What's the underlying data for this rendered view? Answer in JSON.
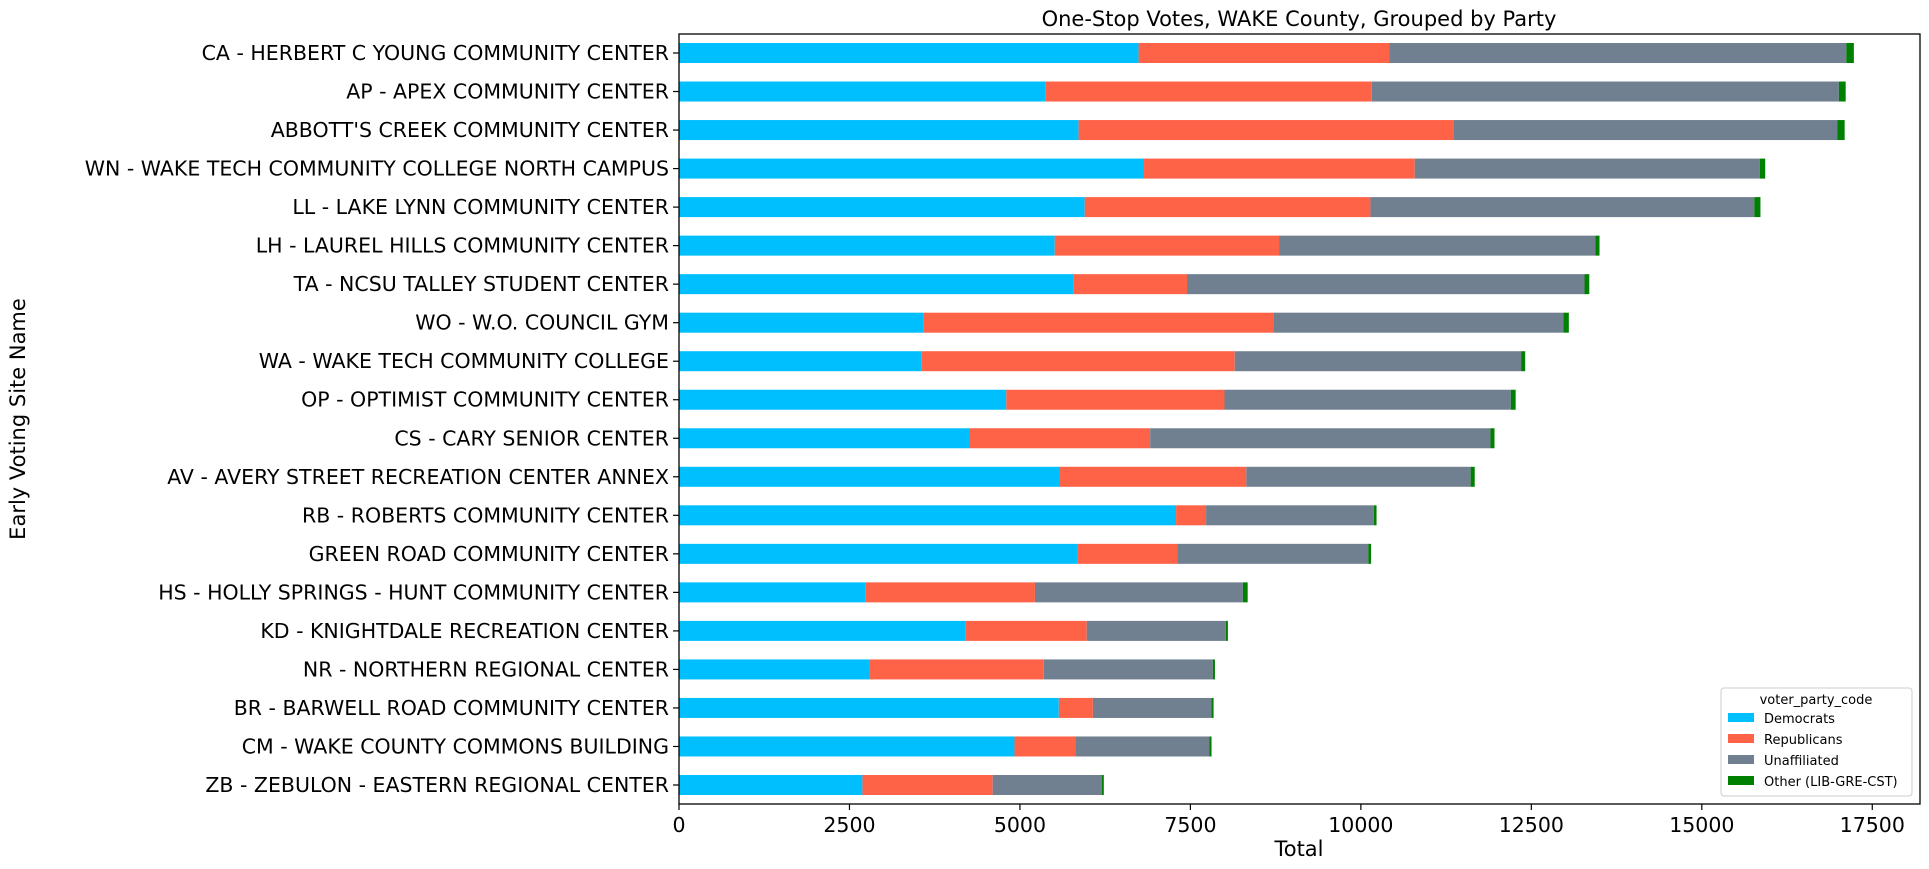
{
  "chart_data": {
    "type": "bar",
    "orientation": "horizontal",
    "stacked": true,
    "title": "One-Stop Votes, WAKE County, Grouped by Party",
    "xlabel": "Total",
    "ylabel": "Early Voting Site Name",
    "xlim": [
      0,
      18200
    ],
    "xticks": [
      0,
      2500,
      5000,
      7500,
      10000,
      12500,
      15000,
      17500
    ],
    "xtick_labels": [
      "0",
      "2500",
      "5000",
      "7500",
      "10000",
      "12500",
      "15000",
      "17500"
    ],
    "grid": false,
    "legend": {
      "title": "voter_party_code",
      "position": "bottom-right"
    },
    "categories": [
      "CA - HERBERT C YOUNG COMMUNITY CENTER",
      "AP - APEX COMMUNITY CENTER",
      "ABBOTT'S CREEK COMMUNITY CENTER",
      "WN - WAKE TECH COMMUNITY COLLEGE NORTH CAMPUS",
      "LL - LAKE LYNN COMMUNITY CENTER",
      "LH - LAUREL HILLS COMMUNITY CENTER",
      "TA - NCSU TALLEY STUDENT CENTER",
      "WO - W.O. COUNCIL GYM",
      "WA - WAKE TECH COMMUNITY COLLEGE",
      "OP - OPTIMIST COMMUNITY CENTER",
      "CS - CARY SENIOR CENTER",
      "AV - AVERY STREET RECREATION CENTER ANNEX",
      "RB - ROBERTS COMMUNITY CENTER",
      "GREEN ROAD COMMUNITY CENTER",
      "HS - HOLLY SPRINGS - HUNT COMMUNITY CENTER",
      "KD - KNIGHTDALE RECREATION CENTER",
      "NR - NORTHERN REGIONAL CENTER",
      "BR - BARWELL ROAD COMMUNITY CENTER",
      "CM - WAKE COUNTY COMMONS BUILDING",
      "ZB - ZEBULON - EASTERN REGIONAL CENTER"
    ],
    "series": [
      {
        "name": "Democrats",
        "color": "#00BFFF",
        "values": [
          6740,
          5370,
          5860,
          6820,
          5950,
          5510,
          5780,
          3580,
          3560,
          4800,
          4260,
          5580,
          7290,
          5850,
          2740,
          4200,
          2800,
          5570,
          4920,
          2690
        ]
      },
      {
        "name": "Republicans",
        "color": "#FF6347",
        "values": [
          3680,
          4790,
          5500,
          3970,
          4190,
          3290,
          1670,
          5140,
          4590,
          3200,
          2650,
          2740,
          440,
          1460,
          2480,
          1780,
          2550,
          500,
          890,
          1910
        ]
      },
      {
        "name": "Unaffiliated",
        "color": "#708090",
        "values": [
          6700,
          6850,
          5630,
          5060,
          5630,
          4640,
          5830,
          4250,
          4200,
          4200,
          4990,
          3290,
          2460,
          2800,
          3050,
          2040,
          2480,
          1740,
          1970,
          1600
        ]
      },
      {
        "name": "Other (LIB-GRE-CST)",
        "color": "#008000",
        "values": [
          110,
          100,
          105,
          80,
          90,
          60,
          70,
          80,
          60,
          70,
          60,
          60,
          40,
          40,
          70,
          30,
          30,
          30,
          30,
          30
        ]
      }
    ]
  }
}
